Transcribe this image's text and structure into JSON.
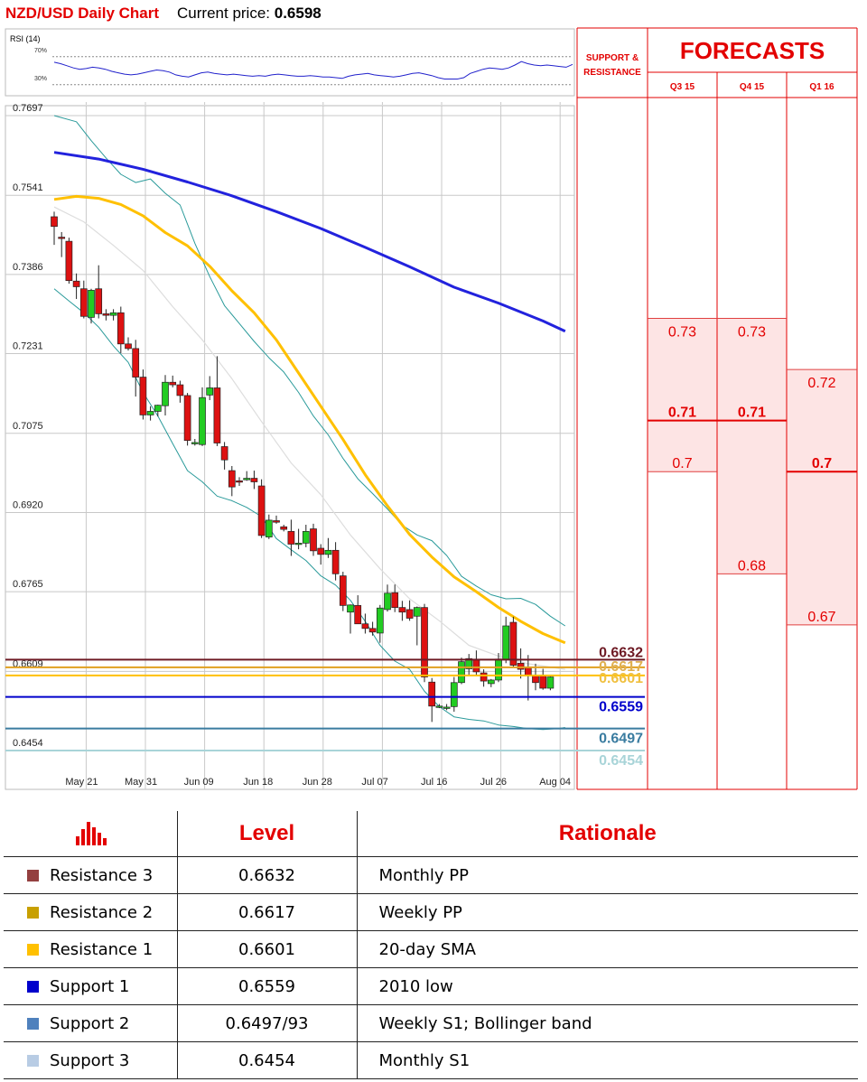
{
  "header": {
    "title": "NZD/USD Daily Chart",
    "price_label": "Current price:",
    "price_value": "0.6598"
  },
  "colors": {
    "accent_red": "#e30000",
    "bull": "#22cc22",
    "bear": "#dd1111",
    "sma200": "#2222dd",
    "sma50": "#ffc000",
    "bollinger": "#2a9a9a",
    "sma20": "#dddddd",
    "forecast_fill": "#fde4e4"
  },
  "rsi": {
    "label": "RSI (14)",
    "upper_label": "70%",
    "lower_label": "30%",
    "upper": 70,
    "lower": 30,
    "values": [
      62,
      60,
      57,
      54,
      52,
      53,
      55,
      54,
      52,
      49,
      47,
      45,
      44,
      45,
      47,
      49,
      51,
      50,
      48,
      44,
      42,
      41,
      44,
      47,
      48,
      46,
      45,
      44,
      45,
      44,
      43,
      42,
      43,
      42,
      44,
      45,
      44,
      43,
      42,
      42,
      43,
      42,
      41,
      41,
      40,
      39,
      42,
      44,
      45,
      46,
      44,
      43,
      42,
      41,
      42,
      44,
      46,
      47,
      45,
      43,
      40,
      38,
      38,
      38,
      40,
      46,
      49,
      52,
      54,
      53,
      52,
      54,
      58,
      63,
      60,
      58,
      57,
      58,
      57,
      56,
      55,
      59
    ]
  },
  "chart_data": {
    "type": "candlestick",
    "title": "NZD/USD Daily Chart",
    "ylim": [
      0.6405,
      0.7706
    ],
    "y_ticks": [
      "0.7697",
      "0.7541",
      "0.7386",
      "0.7231",
      "0.7075",
      "0.6920",
      "0.6765",
      "0.6609",
      "0.6454"
    ],
    "x_ticks": [
      {
        "label": "May 21",
        "index": 2
      },
      {
        "label": "May 31",
        "index": 10
      },
      {
        "label": "Jun 09",
        "index": 18
      },
      {
        "label": "Jun 18",
        "index": 26
      },
      {
        "label": "Jun 28",
        "index": 34
      },
      {
        "label": "Jul 07",
        "index": 42
      },
      {
        "label": "Jul 16",
        "index": 50
      },
      {
        "label": "Jul 26",
        "index": 58
      },
      {
        "label": "Aug 04",
        "index": 66
      }
    ],
    "candles": [
      [
        0.7499,
        0.7509,
        0.7444,
        0.748
      ],
      [
        0.7459,
        0.7469,
        0.742,
        0.7457
      ],
      [
        0.7451,
        0.7458,
        0.7368,
        0.7374
      ],
      [
        0.7373,
        0.7388,
        0.7338,
        0.7362
      ],
      [
        0.7358,
        0.7374,
        0.73,
        0.7304
      ],
      [
        0.7302,
        0.7358,
        0.729,
        0.7355
      ],
      [
        0.7358,
        0.7404,
        0.73,
        0.7309
      ],
      [
        0.7309,
        0.7318,
        0.7296,
        0.7306
      ],
      [
        0.7306,
        0.7318,
        0.7296,
        0.7311
      ],
      [
        0.7311,
        0.7323,
        0.7232,
        0.725
      ],
      [
        0.725,
        0.7263,
        0.7237,
        0.7241
      ],
      [
        0.7241,
        0.7258,
        0.7147,
        0.7185
      ],
      [
        0.7185,
        0.72,
        0.7102,
        0.7111
      ],
      [
        0.7111,
        0.7128,
        0.71,
        0.7118
      ],
      [
        0.7118,
        0.7131,
        0.7108,
        0.713
      ],
      [
        0.7129,
        0.7189,
        0.711,
        0.7175
      ],
      [
        0.7175,
        0.7188,
        0.7165,
        0.717
      ],
      [
        0.717,
        0.7178,
        0.7135,
        0.7149
      ],
      [
        0.7149,
        0.7154,
        0.7051,
        0.7061
      ],
      [
        0.7057,
        0.7064,
        0.7051,
        0.7057
      ],
      [
        0.7053,
        0.7165,
        0.705,
        0.7145
      ],
      [
        0.715,
        0.7187,
        0.714,
        0.7164
      ],
      [
        0.7164,
        0.7226,
        0.705,
        0.7056
      ],
      [
        0.7049,
        0.7058,
        0.7004,
        0.7023
      ],
      [
        0.7002,
        0.7011,
        0.6952,
        0.697
      ],
      [
        0.6982,
        0.6989,
        0.6972,
        0.698
      ],
      [
        0.6984,
        0.7001,
        0.6982,
        0.6987
      ],
      [
        0.6987,
        0.7002,
        0.6966,
        0.698
      ],
      [
        0.6972,
        0.6985,
        0.687,
        0.6875
      ],
      [
        0.6872,
        0.6916,
        0.6868,
        0.6905
      ],
      [
        0.6904,
        0.6914,
        0.6898,
        0.6901
      ],
      [
        0.6892,
        0.6896,
        0.6883,
        0.6887
      ],
      [
        0.6883,
        0.6906,
        0.6835,
        0.6858
      ],
      [
        0.6858,
        0.6888,
        0.6848,
        0.686
      ],
      [
        0.686,
        0.6896,
        0.6852,
        0.6883
      ],
      [
        0.6888,
        0.6898,
        0.6835,
        0.6845
      ],
      [
        0.685,
        0.6858,
        0.6818,
        0.6838
      ],
      [
        0.6838,
        0.687,
        0.6831,
        0.6846
      ],
      [
        0.6846,
        0.6862,
        0.6787,
        0.68
      ],
      [
        0.6796,
        0.6804,
        0.6727,
        0.6738
      ],
      [
        0.6725,
        0.674,
        0.6683,
        0.6739
      ],
      [
        0.6738,
        0.6758,
        0.6708,
        0.6702
      ],
      [
        0.6702,
        0.6722,
        0.6683,
        0.6693
      ],
      [
        0.6693,
        0.6706,
        0.6679,
        0.6686
      ],
      [
        0.6684,
        0.6739,
        0.6665,
        0.6733
      ],
      [
        0.673,
        0.6779,
        0.6726,
        0.6762
      ],
      [
        0.6763,
        0.6779,
        0.6725,
        0.6734
      ],
      [
        0.6734,
        0.6747,
        0.6708,
        0.6725
      ],
      [
        0.673,
        0.6748,
        0.6708,
        0.6713
      ],
      [
        0.6717,
        0.6736,
        0.666,
        0.6734
      ],
      [
        0.6734,
        0.6741,
        0.6588,
        0.6598
      ],
      [
        0.6588,
        0.6596,
        0.651,
        0.6541
      ],
      [
        0.6541,
        0.6545,
        0.6537,
        0.6541
      ],
      [
        0.6539,
        0.6545,
        0.6533,
        0.6539
      ],
      [
        0.654,
        0.6598,
        0.653,
        0.6587
      ],
      [
        0.6587,
        0.6636,
        0.6584,
        0.6628
      ],
      [
        0.6614,
        0.6643,
        0.6602,
        0.6634
      ],
      [
        0.6632,
        0.665,
        0.66,
        0.6608
      ],
      [
        0.6606,
        0.6613,
        0.6579,
        0.659
      ],
      [
        0.6585,
        0.6594,
        0.6578,
        0.6592
      ],
      [
        0.6592,
        0.6645,
        0.6588,
        0.6633
      ],
      [
        0.6633,
        0.6716,
        0.6625,
        0.6698
      ],
      [
        0.6705,
        0.6716,
        0.6618,
        0.6621
      ],
      [
        0.6625,
        0.6654,
        0.6595,
        0.6613
      ],
      [
        0.6616,
        0.6641,
        0.6552,
        0.6601
      ],
      [
        0.6601,
        0.6624,
        0.6572,
        0.6587
      ],
      [
        0.66,
        0.6614,
        0.6573,
        0.6576
      ],
      [
        0.6576,
        0.6599,
        0.6572,
        0.6598
      ]
    ],
    "sma200": [
      [
        0,
        0.7625
      ],
      [
        6,
        0.7612
      ],
      [
        12,
        0.7592
      ],
      [
        18,
        0.7567
      ],
      [
        24,
        0.754
      ],
      [
        30,
        0.7509
      ],
      [
        36,
        0.7476
      ],
      [
        42,
        0.7439
      ],
      [
        48,
        0.7401
      ],
      [
        54,
        0.7361
      ],
      [
        60,
        0.733
      ],
      [
        66,
        0.7295
      ],
      [
        69,
        0.7275
      ]
    ],
    "sma50": [
      [
        0,
        0.7533
      ],
      [
        3,
        0.7539
      ],
      [
        6,
        0.7535
      ],
      [
        9,
        0.7523
      ],
      [
        12,
        0.7501
      ],
      [
        15,
        0.7468
      ],
      [
        18,
        0.7442
      ],
      [
        21,
        0.7402
      ],
      [
        24,
        0.7354
      ],
      [
        27,
        0.7311
      ],
      [
        30,
        0.7258
      ],
      [
        33,
        0.7193
      ],
      [
        36,
        0.7128
      ],
      [
        39,
        0.7063
      ],
      [
        42,
        0.6994
      ],
      [
        45,
        0.6933
      ],
      [
        48,
        0.6877
      ],
      [
        51,
        0.6833
      ],
      [
        54,
        0.6794
      ],
      [
        57,
        0.6765
      ],
      [
        60,
        0.6734
      ],
      [
        63,
        0.6707
      ],
      [
        66,
        0.6683
      ],
      [
        69,
        0.6665
      ]
    ],
    "sma20": [
      [
        0,
        0.7518
      ],
      [
        4,
        0.7489
      ],
      [
        8,
        0.7443
      ],
      [
        12,
        0.7394
      ],
      [
        16,
        0.7323
      ],
      [
        20,
        0.7258
      ],
      [
        24,
        0.7182
      ],
      [
        28,
        0.7098
      ],
      [
        32,
        0.7017
      ],
      [
        36,
        0.6955
      ],
      [
        40,
        0.6876
      ],
      [
        44,
        0.681
      ],
      [
        48,
        0.6751
      ],
      [
        52,
        0.6708
      ],
      [
        56,
        0.666
      ],
      [
        60,
        0.6639
      ],
      [
        64,
        0.6624
      ],
      [
        69,
        0.6613
      ]
    ],
    "bb_upper": [
      [
        0,
        0.7697
      ],
      [
        3,
        0.7685
      ],
      [
        5,
        0.7648
      ],
      [
        7,
        0.7614
      ],
      [
        9,
        0.7582
      ],
      [
        11,
        0.7566
      ],
      [
        13,
        0.7573
      ],
      [
        15,
        0.7545
      ],
      [
        17,
        0.7522
      ],
      [
        19,
        0.7447
      ],
      [
        21,
        0.7382
      ],
      [
        23,
        0.7325
      ],
      [
        25,
        0.729
      ],
      [
        27,
        0.7255
      ],
      [
        29,
        0.7223
      ],
      [
        31,
        0.7195
      ],
      [
        33,
        0.7155
      ],
      [
        35,
        0.7109
      ],
      [
        37,
        0.7072
      ],
      [
        39,
        0.7026
      ],
      [
        41,
        0.6986
      ],
      [
        43,
        0.6957
      ],
      [
        45,
        0.6927
      ],
      [
        47,
        0.6895
      ],
      [
        49,
        0.6876
      ],
      [
        51,
        0.6865
      ],
      [
        53,
        0.6836
      ],
      [
        55,
        0.6795
      ],
      [
        57,
        0.6776
      ],
      [
        59,
        0.6759
      ],
      [
        61,
        0.6751
      ],
      [
        63,
        0.6752
      ],
      [
        65,
        0.674
      ],
      [
        67,
        0.6717
      ],
      [
        69,
        0.6698
      ]
    ],
    "bb_lower": [
      [
        0,
        0.7358
      ],
      [
        2,
        0.7334
      ],
      [
        4,
        0.7311
      ],
      [
        6,
        0.7283
      ],
      [
        8,
        0.7246
      ],
      [
        10,
        0.7214
      ],
      [
        12,
        0.7155
      ],
      [
        14,
        0.7109
      ],
      [
        16,
        0.7055
      ],
      [
        18,
        0.7002
      ],
      [
        20,
        0.698
      ],
      [
        22,
        0.6952
      ],
      [
        24,
        0.6943
      ],
      [
        26,
        0.693
      ],
      [
        28,
        0.6912
      ],
      [
        30,
        0.6869
      ],
      [
        32,
        0.6847
      ],
      [
        34,
        0.6826
      ],
      [
        36,
        0.6796
      ],
      [
        38,
        0.6778
      ],
      [
        40,
        0.6748
      ],
      [
        42,
        0.6707
      ],
      [
        44,
        0.666
      ],
      [
        46,
        0.6629
      ],
      [
        48,
        0.6613
      ],
      [
        50,
        0.657
      ],
      [
        52,
        0.654
      ],
      [
        54,
        0.652
      ],
      [
        56,
        0.6515
      ],
      [
        58,
        0.6512
      ],
      [
        60,
        0.6504
      ],
      [
        62,
        0.6501
      ],
      [
        64,
        0.6497
      ],
      [
        66,
        0.6495
      ],
      [
        68,
        0.6497
      ],
      [
        69,
        0.6499
      ]
    ]
  },
  "levels_markers": [
    {
      "value": "0.6632",
      "y": 0.6632,
      "line_color": "#6e1a24",
      "text_color": "#6e1a24",
      "text_offset": -3
    },
    {
      "value": "0.6617",
      "y": 0.6617,
      "line_color": "#e0a020",
      "text_color": "#e0b050",
      "text_offset": 4
    },
    {
      "value": "0.6601",
      "y": 0.6601,
      "line_color": "#ffc000",
      "text_color": "#f0c040",
      "text_offset": 8
    },
    {
      "value": "0.6559",
      "y": 0.6559,
      "line_color": "#0000cc",
      "text_color": "#0000cc",
      "text_offset": 16
    },
    {
      "value": "0.6497",
      "y": 0.6497,
      "line_color": "#3a7ca0",
      "text_color": "#3a7ca0",
      "text_offset": 16
    },
    {
      "value": "0.6454",
      "y": 0.6454,
      "line_color": "#a8d4d8",
      "text_color": "#a8d4d8",
      "text_offset": 16
    }
  ],
  "forecast_panel": {
    "support_resistance_label": [
      "SUPPORT &",
      "RESISTANCE"
    ],
    "title": "FORECASTS",
    "columns": [
      {
        "label": "Q3 15",
        "high": 0.73,
        "median": 0.71,
        "low": 0.7,
        "high_label": "0.73",
        "median_label": "0.71",
        "low_label": "0.7"
      },
      {
        "label": "Q4 15",
        "high": 0.73,
        "median": 0.71,
        "low": 0.68,
        "high_label": "0.73",
        "median_label": "0.71",
        "low_label": "0.68"
      },
      {
        "label": "Q1 16",
        "high": 0.72,
        "median": 0.7,
        "low": 0.67,
        "high_label": "0.72",
        "median_label": "0.7",
        "low_label": "0.67"
      }
    ]
  },
  "levels_table": {
    "headers": {
      "level": "Level",
      "rationale": "Rationale"
    },
    "rows": [
      {
        "name": "Resistance 3",
        "color": "#944040",
        "level": "0.6632",
        "rationale": "Monthly PP"
      },
      {
        "name": "Resistance 2",
        "color": "#c8a000",
        "level": "0.6617",
        "rationale": "Weekly PP"
      },
      {
        "name": "Resistance 1",
        "color": "#ffc000",
        "level": "0.6601",
        "rationale": "20-day SMA"
      },
      {
        "name": "Support 1",
        "color": "#0000cc",
        "level": "0.6559",
        "rationale": "2010 low"
      },
      {
        "name": "Support 2",
        "color": "#4f81bd",
        "level": "0.6497/93",
        "rationale": "Weekly S1; Bollinger band"
      },
      {
        "name": "Support 3",
        "color": "#b8cce4",
        "level": "0.6454",
        "rationale": "Monthly S1"
      }
    ]
  }
}
